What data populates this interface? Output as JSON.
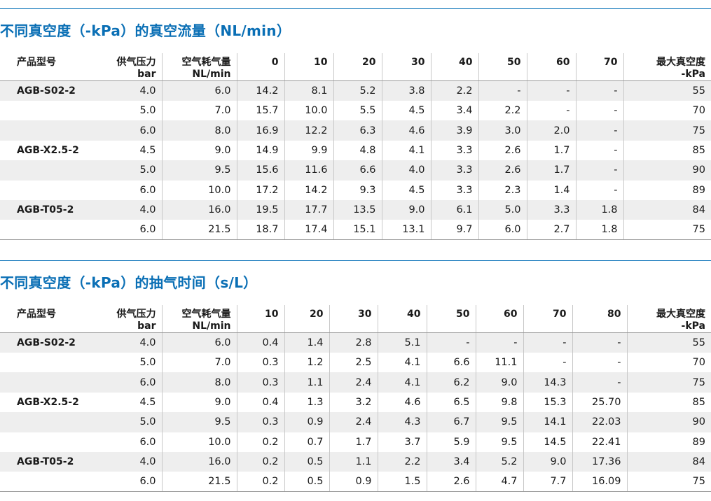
{
  "tables": [
    {
      "title": "不同真空度（-kPa）的真空流量（NL/min）",
      "headers": [
        "产品型号",
        "供气压力\nbar",
        "空气耗气量\nNL/min",
        "0",
        "10",
        "20",
        "30",
        "40",
        "50",
        "60",
        "70",
        "最大真空度\n-kPa"
      ],
      "rows": [
        [
          "AGB-S02-2",
          "4.0",
          "6.0",
          "14.2",
          "8.1",
          "5.2",
          "3.8",
          "2.2",
          "-",
          "-",
          "-",
          "55"
        ],
        [
          "",
          "5.0",
          "7.0",
          "15.7",
          "10.0",
          "5.5",
          "4.5",
          "3.4",
          "2.2",
          "-",
          "-",
          "70"
        ],
        [
          "",
          "6.0",
          "8.0",
          "16.9",
          "12.2",
          "6.3",
          "4.6",
          "3.9",
          "3.0",
          "2.0",
          "-",
          "75"
        ],
        [
          "AGB-X2.5-2",
          "4.5",
          "9.0",
          "14.9",
          "9.9",
          "4.8",
          "4.1",
          "3.3",
          "2.6",
          "1.7",
          "-",
          "85"
        ],
        [
          "",
          "5.0",
          "9.5",
          "15.6",
          "11.6",
          "6.6",
          "4.0",
          "3.3",
          "2.6",
          "1.7",
          "-",
          "90"
        ],
        [
          "",
          "6.0",
          "10.0",
          "17.2",
          "14.2",
          "9.3",
          "4.5",
          "3.3",
          "2.3",
          "1.4",
          "-",
          "89"
        ],
        [
          "AGB-T05-2",
          "4.0",
          "16.0",
          "19.5",
          "17.7",
          "13.5",
          "9.0",
          "6.1",
          "5.0",
          "3.3",
          "1.8",
          "84"
        ],
        [
          "",
          "6.0",
          "21.5",
          "18.7",
          "17.4",
          "15.1",
          "13.1",
          "9.7",
          "6.0",
          "2.7",
          "1.8",
          "75"
        ]
      ]
    },
    {
      "title": "不同真空度（-kPa）的抽气时间（s/L）",
      "headers": [
        "产品型号",
        "供气压力\nbar",
        "空气耗气量\nNL/min",
        "10",
        "20",
        "30",
        "40",
        "50",
        "60",
        "70",
        "80",
        "最大真空度\n-kPa"
      ],
      "rows": [
        [
          "AGB-S02-2",
          "4.0",
          "6.0",
          "0.4",
          "1.4",
          "2.8",
          "5.1",
          "-",
          "-",
          "-",
          "-",
          "55"
        ],
        [
          "",
          "5.0",
          "7.0",
          "0.3",
          "1.2",
          "2.5",
          "4.1",
          "6.6",
          "11.1",
          "-",
          "-",
          "70"
        ],
        [
          "",
          "6.0",
          "8.0",
          "0.3",
          "1.1",
          "2.4",
          "4.1",
          "6.2",
          "9.0",
          "14.3",
          "-",
          "75"
        ],
        [
          "AGB-X2.5-2",
          "4.5",
          "9.0",
          "0.4",
          "1.3",
          "3.2",
          "4.6",
          "6.5",
          "9.8",
          "15.3",
          "25.70",
          "85"
        ],
        [
          "",
          "5.0",
          "9.5",
          "0.3",
          "0.9",
          "2.4",
          "4.3",
          "6.7",
          "9.5",
          "14.1",
          "22.03",
          "90"
        ],
        [
          "",
          "6.0",
          "10.0",
          "0.2",
          "0.7",
          "1.7",
          "3.7",
          "5.9",
          "9.5",
          "14.5",
          "22.41",
          "89"
        ],
        [
          "AGB-T05-2",
          "4.0",
          "16.0",
          "0.2",
          "0.5",
          "1.1",
          "2.2",
          "3.4",
          "5.2",
          "9.0",
          "17.36",
          "84"
        ],
        [
          "",
          "6.0",
          "21.5",
          "0.2",
          "0.5",
          "0.9",
          "1.5",
          "2.6",
          "4.7",
          "7.7",
          "16.09",
          "75"
        ]
      ]
    }
  ],
  "colors": {
    "accent": "#0a6fb5",
    "stripe": "#eeeeee",
    "rule": "#9a9a9a"
  }
}
